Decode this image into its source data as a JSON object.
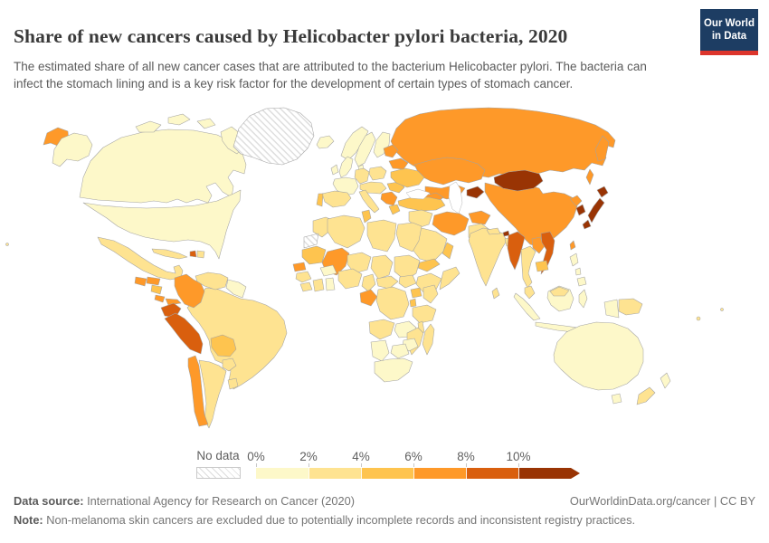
{
  "header": {
    "title": "Share of new cancers caused by Helicobacter pylori bacteria, 2020",
    "subtitle": "The estimated share of all new cancer cases that are attributed to the bacterium Helicobacter pylori. The bacteria can infect the stomach lining and is a key risk factor for the development of certain types of stomach cancer."
  },
  "logo": {
    "line1": "Our World",
    "line2": "in Data",
    "bg_color": "#1d3d63",
    "accent_color": "#dc352c"
  },
  "legend": {
    "no_data_label": "No data",
    "ticks": [
      "0%",
      "2%",
      "4%",
      "6%",
      "8%",
      "10%"
    ]
  },
  "footer": {
    "source_label": "Data source:",
    "source_text": " International Agency for Research on Cancer (2020)",
    "attribution": "OurWorldinData.org/cancer | CC BY",
    "note_label": "Note:",
    "note_text": " Non-melanoma skin cancers are excluded due to potentially incomplete records and inconsistent registry practices."
  },
  "chart_data": {
    "type": "choropleth",
    "title": "Share of new cancers caused by Helicobacter pylori bacteria, 2020",
    "year": 2020,
    "unit": "%",
    "legend_position": "bottom",
    "bins": [
      {
        "range": "0-2%",
        "tick": "0%",
        "color": "#fdf8c9"
      },
      {
        "range": "2-4%",
        "tick": "2%",
        "color": "#fee391"
      },
      {
        "range": "4-6%",
        "tick": "4%",
        "color": "#fec44f"
      },
      {
        "range": "6-8%",
        "tick": "6%",
        "color": "#fe9929"
      },
      {
        "range": "8-10%",
        "tick": "8%",
        "color": "#d95f0e"
      },
      {
        "range": "10%+",
        "tick": "10%",
        "color": "#993404"
      }
    ],
    "no_data": {
      "label": "No data",
      "fill": "hatched"
    },
    "countries": {
      "canada": 0,
      "canada-arctic": 0,
      "alaska": 0,
      "usa": 0,
      "greenland": "no_data",
      "iceland": 0,
      "chukotka-russia": 3,
      "mexico": 1,
      "guatemala": 3,
      "honduras": 3,
      "nicaragua": 2,
      "costa-rica": 3,
      "panama": 3,
      "cuba": 1,
      "haiti": 4,
      "dominican-republic": 1,
      "colombia": 3,
      "venezuela": 1,
      "guyanas": 0,
      "ecuador": 4,
      "peru": 4,
      "brazil": 1,
      "bolivia": 2,
      "paraguay": 1,
      "chile": 3,
      "argentina": 1,
      "uruguay": 1,
      "norway": 0,
      "sweden": 0,
      "finland": 0,
      "denmark": 0,
      "uk": 0,
      "ireland": 0,
      "france": 0,
      "spain": 1,
      "portugal": 2,
      "germany": 1,
      "poland": 1,
      "central-europe": 1,
      "italy": 1,
      "balkans": 3,
      "greece": 2,
      "romania": 2,
      "ukraine": 2,
      "belarus": 3,
      "baltics": 3,
      "russia": 3,
      "sakhalin": 3,
      "caucasus": 3,
      "turkey": 2,
      "syria-iraq": 1,
      "saudi-arabia": 1,
      "yemen": 2,
      "oman": 2,
      "iran": 3,
      "afghanistan": 3,
      "pakistan": 1,
      "kazakhstan": 3,
      "uzbekistan-turkmenistan": 3,
      "kyrgyzstan-tajikistan": 5,
      "mongolia": 5,
      "china": 3,
      "north-korea": 3,
      "south-korea": 5,
      "japan": 5,
      "taiwan": 3,
      "india": 1,
      "nepal": 1,
      "bhutan": 5,
      "bangladesh": 1,
      "sri-lanka": 1,
      "myanmar": 4,
      "thailand": 1,
      "laos": 3,
      "vietnam": 4,
      "cambodia": 2,
      "malaysia": 1,
      "malaysia-borneo": 1,
      "indonesia": 0,
      "philippines": 0,
      "papua-new-guinea": 1,
      "australia": 0,
      "tasmania": 0,
      "new-zealand-north": 0,
      "new-zealand-south": 1,
      "pacific-islands": 1,
      "morocco": 1,
      "western-sahara": "no_data",
      "algeria": 1,
      "tunisia": 2,
      "libya": 1,
      "egypt": 1,
      "mauritania": 2,
      "mali": 3,
      "niger": 1,
      "chad": 1,
      "sudan": 1,
      "ethiopia": 1,
      "somalia": 1,
      "senegal": 3,
      "guinea": 1,
      "sierra-leone-liberia": 1,
      "ivory-coast": 1,
      "ghana": 0,
      "burkina-faso": 0,
      "nigeria": 1,
      "cameroon": 1,
      "central-african-republic": 1,
      "south-sudan": 1,
      "gabon-congo": 3,
      "drc": 1,
      "uganda": 2,
      "kenya": 1,
      "rwanda-burundi": 2,
      "tanzania": 1,
      "angola": 1,
      "zambia": 0,
      "malawi": 1,
      "mozambique": 1,
      "zimbabwe": 0,
      "botswana": 0,
      "namibia": 0,
      "south-africa": 0,
      "madagascar": 1
    }
  }
}
